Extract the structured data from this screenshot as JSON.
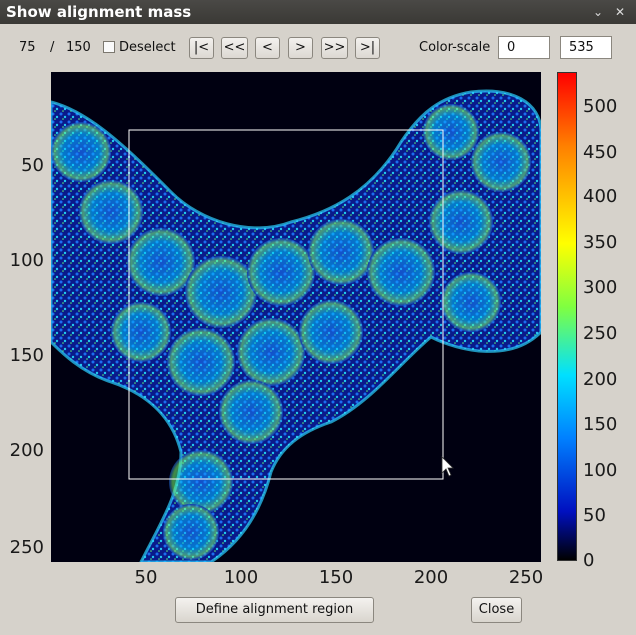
{
  "window": {
    "title": "Show alignment mass",
    "minimize_glyph": "⌄",
    "close_glyph": "✕"
  },
  "toolbar": {
    "current": "75",
    "separator": "/",
    "total": "150",
    "deselect_label": "Deselect",
    "deselect_checked": false,
    "nav": {
      "first": "|<",
      "prev_fast": "<<",
      "prev": "<",
      "next": ">",
      "next_fast": ">>",
      "last": ">|"
    },
    "color_scale_label": "Color-scale",
    "color_min": "0",
    "color_max": "535"
  },
  "plot": {
    "y_ticks": [
      "50",
      "100",
      "150",
      "200",
      "250"
    ],
    "x_ticks": [
      "50",
      "100",
      "150",
      "200",
      "250"
    ],
    "colorbar_ticks": [
      "500",
      "450",
      "400",
      "350",
      "300",
      "250",
      "200",
      "150",
      "100",
      "50",
      "0"
    ],
    "colormap": "jet",
    "image_description_icon": "heatmap-image"
  },
  "buttons": {
    "define_region": "Define alignment region",
    "close": "Close"
  }
}
